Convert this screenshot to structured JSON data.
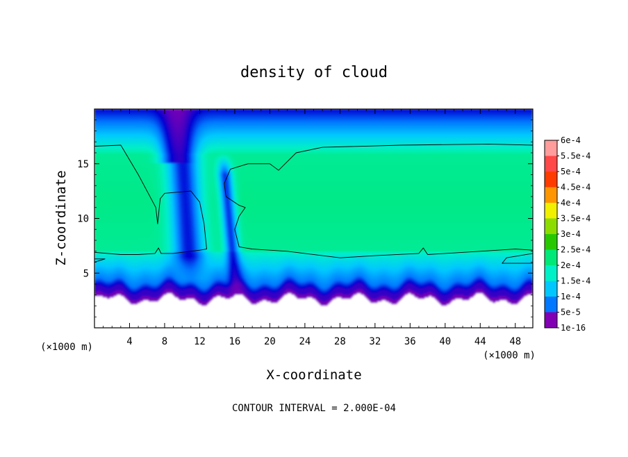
{
  "chart_data": {
    "type": "heatmap",
    "title": "density of cloud",
    "xlabel": "X-coordinate",
    "ylabel": "Z-coordinate",
    "x_unit_label": "(×1000 m)",
    "x_unit_label_right": "(×1000 m)",
    "xlim": [
      0,
      50
    ],
    "ylim": [
      0,
      20
    ],
    "xticks": [
      4,
      8,
      12,
      16,
      20,
      24,
      28,
      32,
      36,
      40,
      44,
      48
    ],
    "yticks": [
      5,
      10,
      15
    ],
    "contour_interval_text": "CONTOUR INTERVAL = 2.000E-04",
    "colorbar": {
      "labels": [
        "6e-4",
        "5.5e-4",
        "5e-4",
        "4.5e-4",
        "4e-4",
        "3.5e-4",
        "3e-4",
        "2.5e-4",
        "2e-4",
        "1.5e-4",
        "1e-4",
        "5e-5",
        "1e-16"
      ],
      "colors": [
        "#ff9c9c",
        "#ff4848",
        "#ff3c00",
        "#ff9600",
        "#f0f000",
        "#8cdc00",
        "#28c800",
        "#00e878",
        "#00f0c8",
        "#00c8ff",
        "#0078ff",
        "#0000d2",
        "#8200b4"
      ]
    },
    "field": {
      "base_height": 3,
      "clear_top_value": 0.00022,
      "cloud_core_value": 0.00024,
      "core_z_range": [
        7,
        16
      ],
      "notes": [
        "updraft column near x=8-14 with low density",
        "narrow plume near x=15-17 reaching the ground",
        "purple base band near z=3-4"
      ]
    },
    "contours": [
      {
        "level": 0.0002,
        "points": [
          [
            0,
            16.6
          ],
          [
            3,
            16.7
          ],
          [
            5,
            14
          ],
          [
            7,
            11
          ],
          [
            7.2,
            9.5
          ],
          [
            7.5,
            11.8
          ],
          [
            8,
            12.3
          ],
          [
            11,
            12.5
          ],
          [
            12,
            11.5
          ],
          [
            12.5,
            9.5
          ],
          [
            12.8,
            7.2
          ],
          [
            12,
            7.1
          ],
          [
            9,
            6.8
          ],
          [
            7.6,
            6.8
          ],
          [
            7.3,
            7.3
          ],
          [
            6.9,
            6.8
          ],
          [
            5,
            6.7
          ],
          [
            3,
            6.7
          ],
          [
            0,
            6.9
          ]
        ]
      },
      {
        "level": 0.0002,
        "points": [
          [
            50,
            16.7
          ],
          [
            45,
            16.8
          ],
          [
            35,
            16.7
          ],
          [
            26,
            16.5
          ],
          [
            23,
            16
          ],
          [
            21,
            14.4
          ],
          [
            20,
            15
          ],
          [
            17.5,
            15
          ],
          [
            15.5,
            14.5
          ],
          [
            14.8,
            13.2
          ],
          [
            15,
            12
          ],
          [
            16.5,
            11.2
          ],
          [
            17.2,
            11
          ],
          [
            16.5,
            10.2
          ],
          [
            16,
            9
          ],
          [
            16.5,
            7.4
          ],
          [
            18,
            7.2
          ],
          [
            22,
            7
          ],
          [
            28,
            6.4
          ],
          [
            32,
            6.6
          ],
          [
            37,
            6.8
          ],
          [
            37.5,
            7.3
          ],
          [
            38,
            6.7
          ],
          [
            40,
            6.8
          ],
          [
            44,
            7
          ],
          [
            48,
            7.2
          ],
          [
            50,
            7.1
          ]
        ]
      },
      {
        "level": 0.0002,
        "points": [
          [
            50,
            6.8
          ],
          [
            47,
            6.4
          ],
          [
            46.5,
            5.9
          ],
          [
            50,
            5.9
          ]
        ]
      },
      {
        "level": 0.0002,
        "points": [
          [
            0,
            6.3
          ],
          [
            1.2,
            6.3
          ],
          [
            0,
            6.0
          ]
        ]
      }
    ]
  }
}
